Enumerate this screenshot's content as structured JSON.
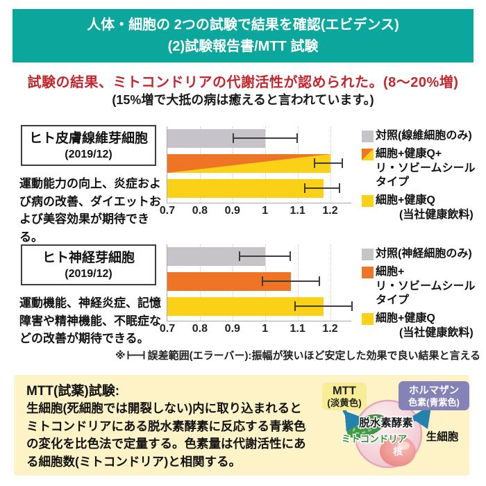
{
  "header": {
    "line1": "人体・細胞の 2つの試験で結果を確認(エビデンス)",
    "line2": "(2)試験報告書/MTT 試験"
  },
  "headline": {
    "main": "試験の結果、ミトコンドリアの代謝活性が認められた。(8〜20%増)",
    "sub": "(15%増で大抵の病は癒えると言われています。)"
  },
  "note": {
    "prefix": "※",
    "icon": "error-bar-range-icon",
    "text": "誤差範囲(エラーバー):振幅が狭いほど安定した効果で良い結果と言える"
  },
  "mtt_box": {
    "title": "MTT(試薬)試験:",
    "body": "生細胞(死細胞では開裂しない)内に取り込まれるとミトコンドリアにある脱水素酵素に反応する青紫色の変化を比色法で定量する。色素量は代謝活性にある細胞数(ミトコンドリア)と相関する。"
  },
  "diagram": {
    "mtt_label": "MTT",
    "mtt_sub": "(淡黄色)",
    "formazan_line1": "ホルマザン",
    "formazan_line2": "色素(青紫色)",
    "enzyme": "脱水素酵素",
    "mitochondria": "ミトコンドリア",
    "nucleus": "核",
    "living_cell": "生細胞"
  },
  "colors": {
    "teal": "#0ba69c",
    "red": "#c1272d",
    "bar_gray": "#c6c4c8",
    "bar_orange": "#ed7525",
    "bar_yellow": "#fad117",
    "box_yellow": "#fdf3c6",
    "mtt_label_yellow": "#f8ec96",
    "formazan_purple": "#8582b7",
    "arrow_blue": "#2383ad",
    "cell_pink": "#f5d3da",
    "nucleus_pink": "#e8827e",
    "mito_green": "#3e9b43"
  },
  "chart_data": [
    {
      "type": "bar",
      "orientation": "horizontal",
      "panel_title": "ヒト皮膚線維芽細胞",
      "panel_date": "(2019/12)",
      "description": "運動能力の向上、炎症および病の改善、ダイエットおよび美容効果が期待できる。",
      "x_ticks": [
        0.7,
        0.8,
        0.9,
        1,
        1.1,
        1.2
      ],
      "xlim": [
        0.7,
        1.265
      ],
      "grid": "dotted-vertical",
      "legend_position": "right",
      "series": [
        {
          "name": "対照(線維細胞のみ)",
          "value": 1.0,
          "error": [
            0.9,
            1.1
          ],
          "color_key": "gray",
          "legend_lines": [
            {
              "text": "対照(線維細胞のみ)"
            }
          ]
        },
        {
          "name": "細胞+健康Q+リ・ソビームシールタイプ",
          "value": 1.2,
          "error": [
            1.15,
            1.24
          ],
          "color_key": "split",
          "legend_lines": [
            {
              "text": "細胞+健康Q+"
            },
            {
              "text": "リ・ソビームシールタイプ"
            }
          ]
        },
        {
          "name": "細胞+健康Q(当社健康飲料)",
          "value": 1.18,
          "error": [
            1.12,
            1.23
          ],
          "color_key": "yellow",
          "legend_lines": [
            {
              "text": "細胞+健康Q"
            },
            {
              "text": "(当社健康飲料)",
              "indent": true
            }
          ]
        }
      ]
    },
    {
      "type": "bar",
      "orientation": "horizontal",
      "panel_title": "ヒト神経芽細胞",
      "panel_date": "(2019/12)",
      "description": "運動機能、神経炎症、記憶障害や精神機能、不眠症などの改善が期待できる。",
      "x_ticks": [
        0.7,
        0.8,
        0.9,
        1,
        1.1,
        1.2
      ],
      "xlim": [
        0.7,
        1.265
      ],
      "grid": "dotted-vertical",
      "legend_position": "right",
      "series": [
        {
          "name": "対照(神経細胞のみ)",
          "value": 1.0,
          "error": [
            0.92,
            1.08
          ],
          "color_key": "gray",
          "legend_lines": [
            {
              "text": "対照(神経細胞のみ)"
            }
          ]
        },
        {
          "name": "細胞+リ・ソビームシールタイプ",
          "value": 1.08,
          "error": [
            0.99,
            1.17
          ],
          "color_key": "orange",
          "legend_lines": [
            {
              "text": "細胞+"
            },
            {
              "text": "リ・ソビームシールタイプ"
            }
          ]
        },
        {
          "name": "細胞+健康Q(当社健康飲料)",
          "value": 1.18,
          "error": [
            1.09,
            1.27
          ],
          "color_key": "yellow",
          "legend_lines": [
            {
              "text": "細胞+健康Q"
            },
            {
              "text": "(当社健康飲料)",
              "indent": true
            }
          ]
        }
      ]
    }
  ]
}
